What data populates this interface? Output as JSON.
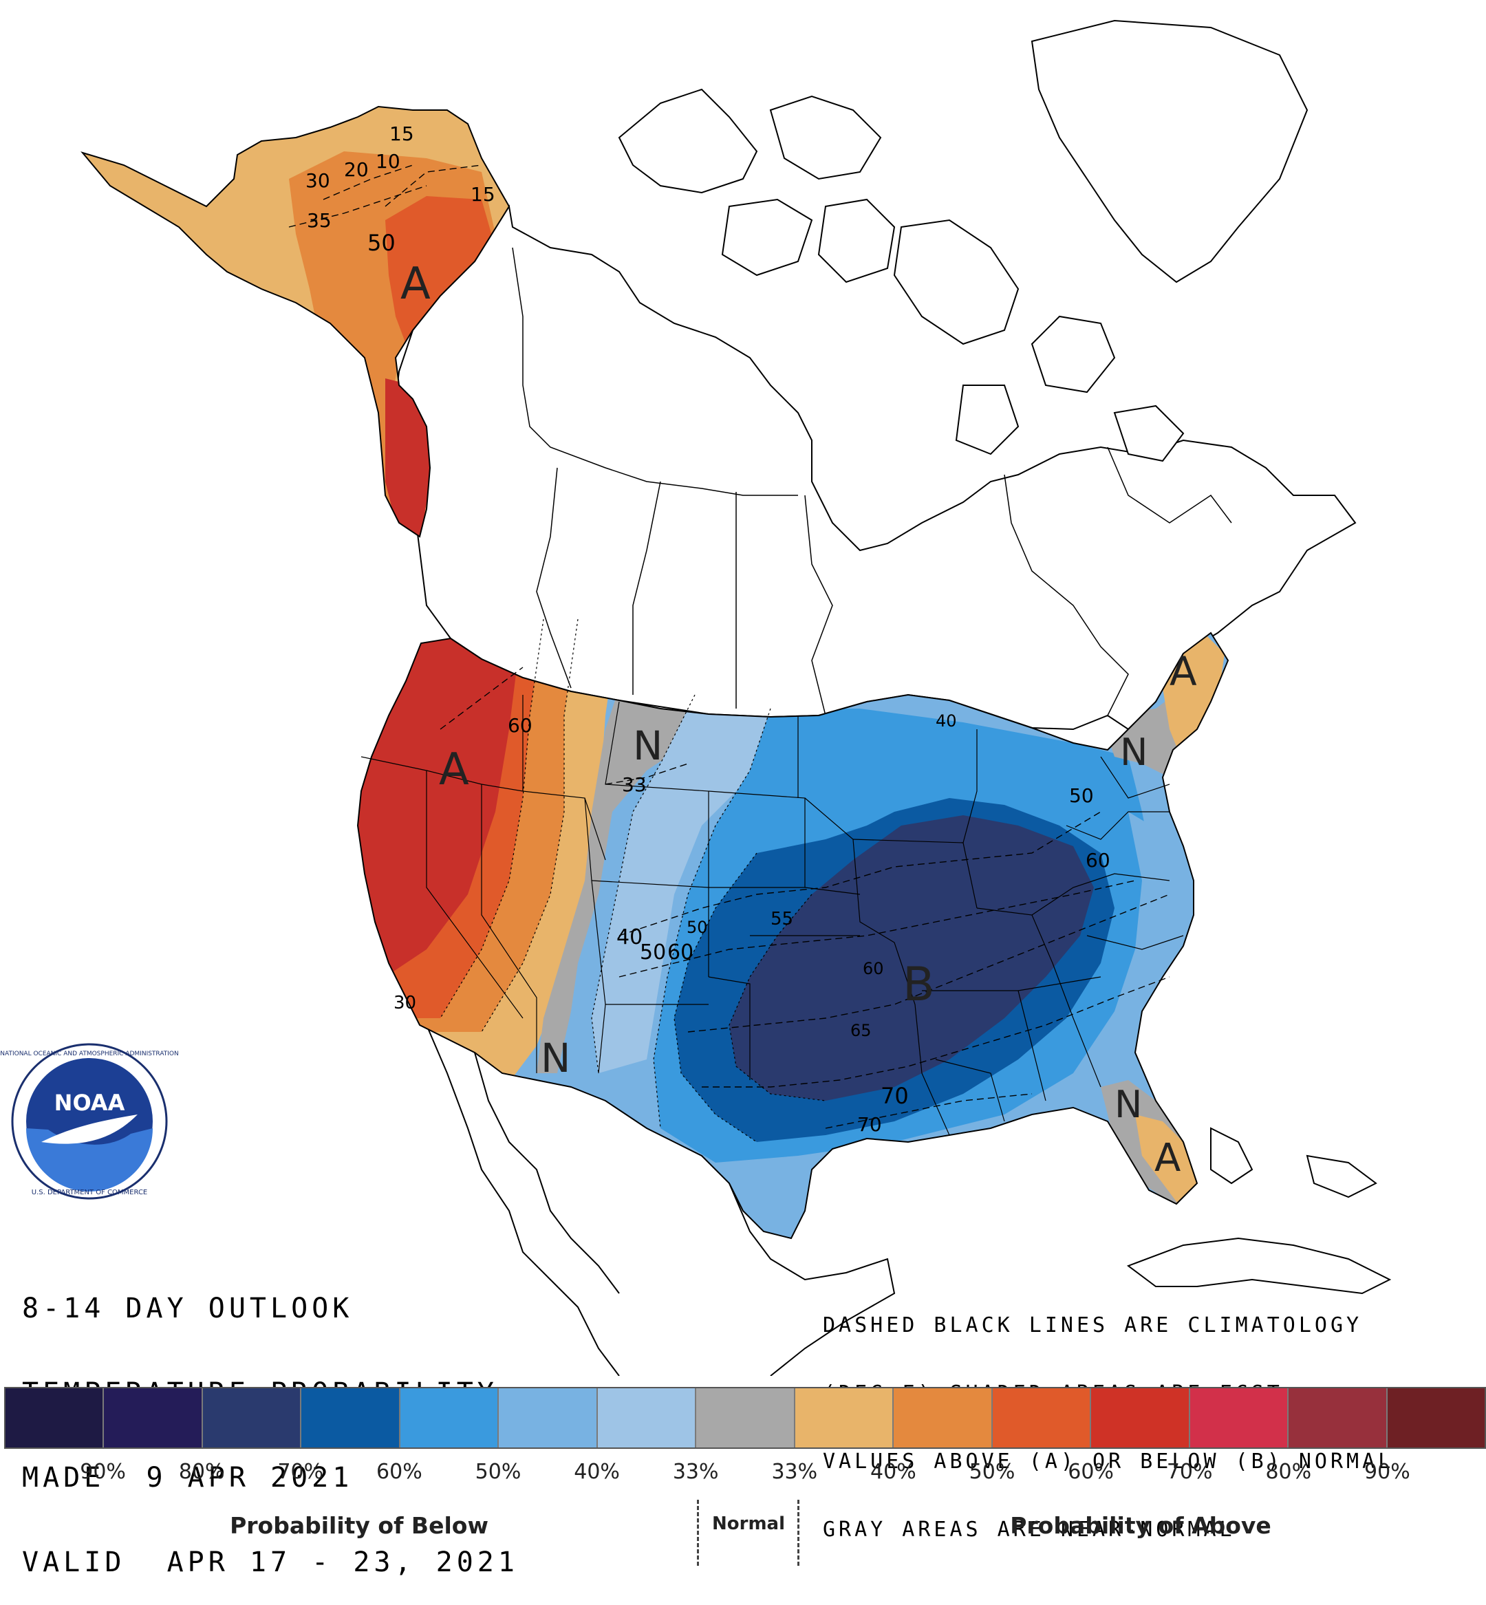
{
  "map": {
    "title_lines": [
      "8-14 DAY OUTLOOK",
      "TEMPERATURE PROBABILITY",
      "MADE  9 APR 2021",
      "VALID  APR 17 - 23, 2021"
    ],
    "note_lines": [
      "DASHED BLACK LINES ARE CLIMATOLOGY",
      "(DEG F) SHADED AREAS ARE FCST",
      "VALUES ABOVE (A) OR BELOW (B) NORMAL",
      "GRAY AREAS ARE NEAR-NORMAL"
    ],
    "region_markers": [
      {
        "name": "alaska-above",
        "text": "A"
      },
      {
        "name": "west-above",
        "text": "A"
      },
      {
        "name": "northeast-above",
        "text": "A"
      },
      {
        "name": "florida-above",
        "text": "A"
      },
      {
        "name": "central-below",
        "text": "B"
      },
      {
        "name": "north-rockies-normal",
        "text": "N"
      },
      {
        "name": "southwest-normal",
        "text": "N"
      },
      {
        "name": "new-york-normal",
        "text": "N"
      },
      {
        "name": "north-florida-normal",
        "text": "N"
      }
    ],
    "climatology_labels": [
      {
        "name": "ak-15-north",
        "text": "15"
      },
      {
        "name": "ak-10",
        "text": "10"
      },
      {
        "name": "ak-20",
        "text": "20"
      },
      {
        "name": "ak-30",
        "text": "30"
      },
      {
        "name": "ak-15-east",
        "text": "15"
      },
      {
        "name": "ak-35",
        "text": "35"
      },
      {
        "name": "ak-50",
        "text": "50"
      },
      {
        "name": "nw-60",
        "text": "60"
      },
      {
        "name": "mt-33",
        "text": "33"
      },
      {
        "name": "mn-40",
        "text": "40"
      },
      {
        "name": "oh-50",
        "text": "50"
      },
      {
        "name": "va-60",
        "text": "60"
      },
      {
        "name": "co-40",
        "text": "40"
      },
      {
        "name": "co-50",
        "text": "50"
      },
      {
        "name": "co-60",
        "text": "60"
      },
      {
        "name": "ne-50",
        "text": "50"
      },
      {
        "name": "ks-55",
        "text": "55"
      },
      {
        "name": "mo-60",
        "text": "60"
      },
      {
        "name": "ok-65",
        "text": "65"
      },
      {
        "name": "la-70",
        "text": "70"
      },
      {
        "name": "tx-70",
        "text": "70"
      },
      {
        "name": "ca-30",
        "text": "30"
      }
    ],
    "colors": {
      "below_very_dark": "#2a3a6e",
      "below_dark": "#0b5aa2",
      "below_medium": "#3a9ade",
      "below_light": "#78b2e2",
      "below_lightest": "#9ec4e6",
      "normal_gray": "#a8a8a8",
      "above_light": "#e8b46a",
      "above_medium": "#e4893e",
      "above_strong": "#e05a2a",
      "above_darker": "#c8302a"
    }
  },
  "legend": {
    "swatches": [
      {
        "name": "below-90",
        "color": "#1e1a44"
      },
      {
        "name": "below-80",
        "color": "#241c58"
      },
      {
        "name": "below-70",
        "color": "#2a3a6e"
      },
      {
        "name": "below-60",
        "color": "#0b5aa2"
      },
      {
        "name": "below-50",
        "color": "#3a9ade"
      },
      {
        "name": "below-40",
        "color": "#78b2e2"
      },
      {
        "name": "below-33",
        "color": "#9ec4e6"
      },
      {
        "name": "normal",
        "color": "#a8a8a8"
      },
      {
        "name": "above-33",
        "color": "#e8b46a"
      },
      {
        "name": "above-40",
        "color": "#e4893e"
      },
      {
        "name": "above-50",
        "color": "#e05a2a"
      },
      {
        "name": "above-60",
        "color": "#cf3226"
      },
      {
        "name": "above-70",
        "color": "#d2304a"
      },
      {
        "name": "above-80",
        "color": "#97303c"
      },
      {
        "name": "above-90",
        "color": "#6e2024"
      }
    ],
    "labels": [
      "90%",
      "80%",
      "70%",
      "60%",
      "50%",
      "40%",
      "33%",
      "33%",
      "40%",
      "50%",
      "60%",
      "70%",
      "80%",
      "90%"
    ],
    "caption_below": "Probability of Below",
    "caption_normal": "Normal",
    "caption_above": "Probability of Above"
  },
  "logo": {
    "text": "NOAA",
    "ring_text_top": "NATIONAL OCEANIC AND ATMOSPHERIC ADMINISTRATION",
    "ring_text_bottom": "U.S. DEPARTMENT OF COMMERCE"
  }
}
